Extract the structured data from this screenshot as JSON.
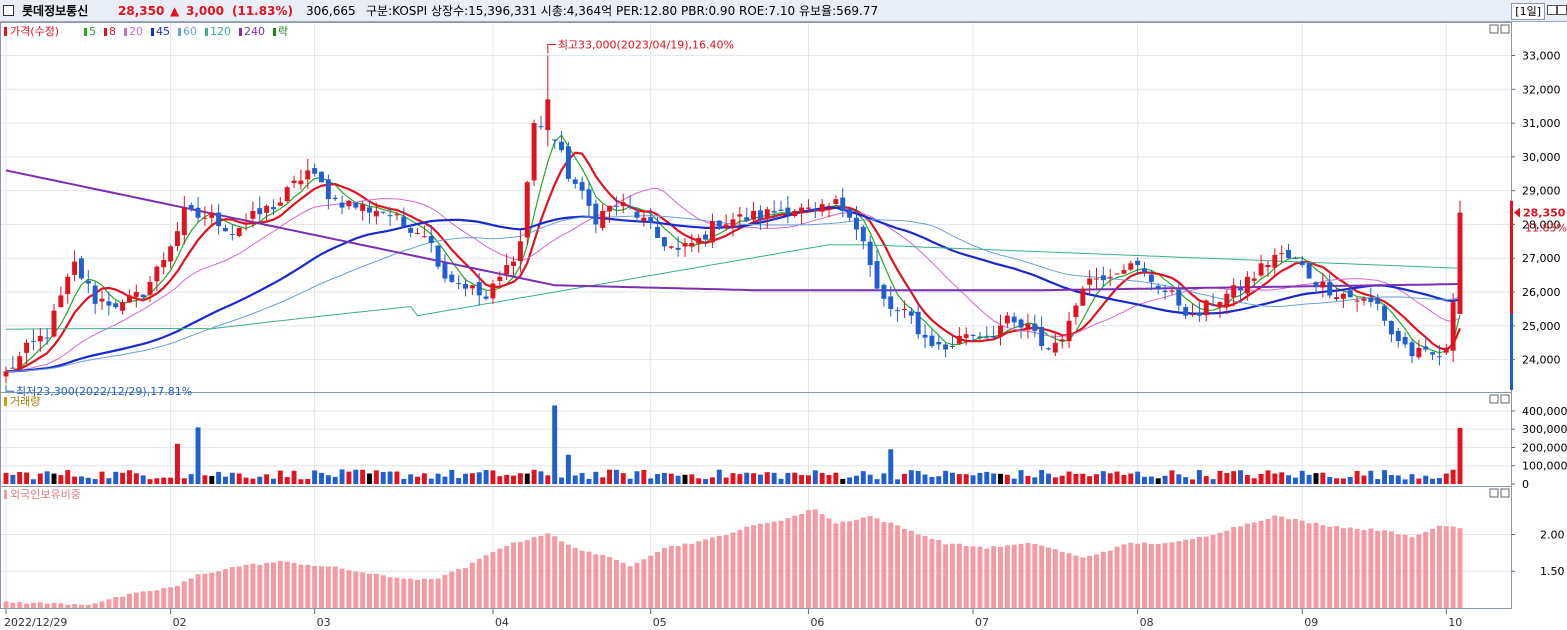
{
  "header": {
    "name": "롯데정보통신",
    "price": "28,350",
    "change_arrow": "▲",
    "change": "3,000",
    "change_pct": "(11.83%)",
    "volume": "306,665",
    "info": "구분:KOSPI 상장수:15,396,331 시총:4,364억 PER:12.80 PBR:0.90 ROE:7.10 유보율:569.77",
    "period": "[1일]"
  },
  "legend_price": {
    "title": "가격(수정)",
    "ma": [
      {
        "label": "5",
        "color": "#22aa22"
      },
      {
        "label": "8",
        "color": "#e0131f"
      },
      {
        "label": "20",
        "color": "#d06ad0"
      },
      {
        "label": "45",
        "color": "#1a2bcc"
      },
      {
        "label": "60",
        "color": "#6aa0d8"
      },
      {
        "label": "120",
        "color": "#3bb08a"
      },
      {
        "label": "240",
        "color": "#7a2fb5"
      }
    ],
    "last": "락"
  },
  "annotations": {
    "high": "최고33,000(2023/04/19),16.40%",
    "low": "최저23,300(2022/12/29),17.81%"
  },
  "current": {
    "price": "28,350",
    "pct": "11.83%"
  },
  "volume_title": "거래량",
  "foreign_title": "외국인보유비중",
  "colors": {
    "up": "#e0131f",
    "down": "#1f5fd0",
    "foreign": "#f49aa0"
  },
  "chart_data": [
    {
      "type": "candlestick",
      "price_ticks": [
        "24,000",
        "25,000",
        "26,000",
        "27,000",
        "28,000",
        "29,000",
        "30,000",
        "31,000",
        "32,000",
        "33,000"
      ],
      "price_tick_values": [
        24000,
        25000,
        26000,
        27000,
        28000,
        29000,
        30000,
        31000,
        32000,
        33000
      ],
      "x_labels": [
        "2022/12/29",
        "02",
        "03",
        "04",
        "05",
        "06",
        "07",
        "08",
        "09",
        "10"
      ],
      "keypoints": [
        [
          0,
          23600
        ],
        [
          3,
          24300
        ],
        [
          6,
          24800
        ],
        [
          10,
          26800
        ],
        [
          13,
          25800
        ],
        [
          17,
          25600
        ],
        [
          20,
          26000
        ],
        [
          23,
          27000
        ],
        [
          26,
          28300
        ],
        [
          30,
          28200
        ],
        [
          33,
          27800
        ],
        [
          36,
          28200
        ],
        [
          40,
          28700
        ],
        [
          44,
          29600
        ],
        [
          48,
          28700
        ],
        [
          52,
          28500
        ],
        [
          55,
          28400
        ],
        [
          58,
          28000
        ],
        [
          61,
          27800
        ],
        [
          64,
          26500
        ],
        [
          67,
          26200
        ],
        [
          70,
          25800
        ],
        [
          73,
          26700
        ],
        [
          75,
          27500
        ],
        [
          77,
          31000
        ],
        [
          80,
          30500
        ],
        [
          82,
          29500
        ],
        [
          86,
          28200
        ],
        [
          89,
          28600
        ],
        [
          92,
          28300
        ],
        [
          95,
          27600
        ],
        [
          98,
          27200
        ],
        [
          101,
          27500
        ],
        [
          104,
          28100
        ],
        [
          108,
          28200
        ],
        [
          111,
          28300
        ],
        [
          114,
          28500
        ],
        [
          118,
          28300
        ],
        [
          121,
          28600
        ],
        [
          123,
          28400
        ],
        [
          125,
          27500
        ],
        [
          127,
          26000
        ],
        [
          129,
          25500
        ],
        [
          132,
          25200
        ],
        [
          134,
          24600
        ],
        [
          137,
          24300
        ],
        [
          140,
          24800
        ],
        [
          143,
          24700
        ],
        [
          146,
          25100
        ],
        [
          149,
          24900
        ],
        [
          152,
          24300
        ],
        [
          155,
          25000
        ],
        [
          157,
          26300
        ],
        [
          160,
          26500
        ],
        [
          163,
          26800
        ],
        [
          165,
          26700
        ],
        [
          168,
          26200
        ],
        [
          171,
          25700
        ],
        [
          173,
          25200
        ],
        [
          176,
          25700
        ],
        [
          179,
          26000
        ],
        [
          182,
          26500
        ],
        [
          185,
          27100
        ],
        [
          188,
          26900
        ],
        [
          191,
          26300
        ],
        [
          194,
          26000
        ],
        [
          197,
          25800
        ],
        [
          200,
          25600
        ],
        [
          202,
          24800
        ],
        [
          205,
          24200
        ],
        [
          208,
          24100
        ],
        [
          210,
          24200
        ],
        [
          211,
          25800
        ],
        [
          212,
          25300
        ]
      ],
      "last_candle": {
        "open": 25350,
        "high": 28700,
        "low": 25350,
        "close": 28350
      },
      "high_point": {
        "index": 79,
        "price": 33000
      },
      "low_point": {
        "index": 0,
        "price": 23300
      }
    },
    {
      "type": "bar",
      "name": "volume",
      "ticks": [
        "0",
        "100,000",
        "200,000",
        "300,000",
        "400,000"
      ],
      "tick_values": [
        0,
        100000,
        200000,
        300000,
        400000
      ],
      "spikes": [
        {
          "index": 25,
          "value": 220000
        },
        {
          "index": 28,
          "value": 310000
        },
        {
          "index": 80,
          "value": 430000
        },
        {
          "index": 82,
          "value": 160000
        },
        {
          "index": 129,
          "value": 190000
        },
        {
          "index": 212,
          "value": 306665
        }
      ]
    },
    {
      "type": "bar",
      "name": "foreign_ratio",
      "ticks": [
        "1.50",
        "2.00"
      ],
      "tick_values": [
        1.5,
        2.0
      ],
      "keypoints": [
        [
          0,
          1.08
        ],
        [
          12,
          1.05
        ],
        [
          18,
          1.18
        ],
        [
          25,
          1.3
        ],
        [
          28,
          1.45
        ],
        [
          34,
          1.57
        ],
        [
          40,
          1.63
        ],
        [
          48,
          1.55
        ],
        [
          56,
          1.42
        ],
        [
          62,
          1.38
        ],
        [
          67,
          1.55
        ],
        [
          72,
          1.82
        ],
        [
          79,
          2.02
        ],
        [
          82,
          1.85
        ],
        [
          88,
          1.68
        ],
        [
          91,
          1.58
        ],
        [
          96,
          1.82
        ],
        [
          102,
          1.92
        ],
        [
          109,
          2.12
        ],
        [
          114,
          2.22
        ],
        [
          118,
          2.35
        ],
        [
          121,
          2.15
        ],
        [
          126,
          2.25
        ],
        [
          131,
          2.08
        ],
        [
          137,
          1.88
        ],
        [
          143,
          1.82
        ],
        [
          150,
          1.88
        ],
        [
          157,
          1.68
        ],
        [
          164,
          1.88
        ],
        [
          170,
          1.88
        ],
        [
          175,
          1.98
        ],
        [
          180,
          2.12
        ],
        [
          185,
          2.25
        ],
        [
          189,
          2.18
        ],
        [
          193,
          2.12
        ],
        [
          197,
          2.08
        ],
        [
          202,
          2.05
        ],
        [
          205,
          1.95
        ],
        [
          209,
          2.12
        ],
        [
          212,
          2.1
        ]
      ]
    }
  ]
}
